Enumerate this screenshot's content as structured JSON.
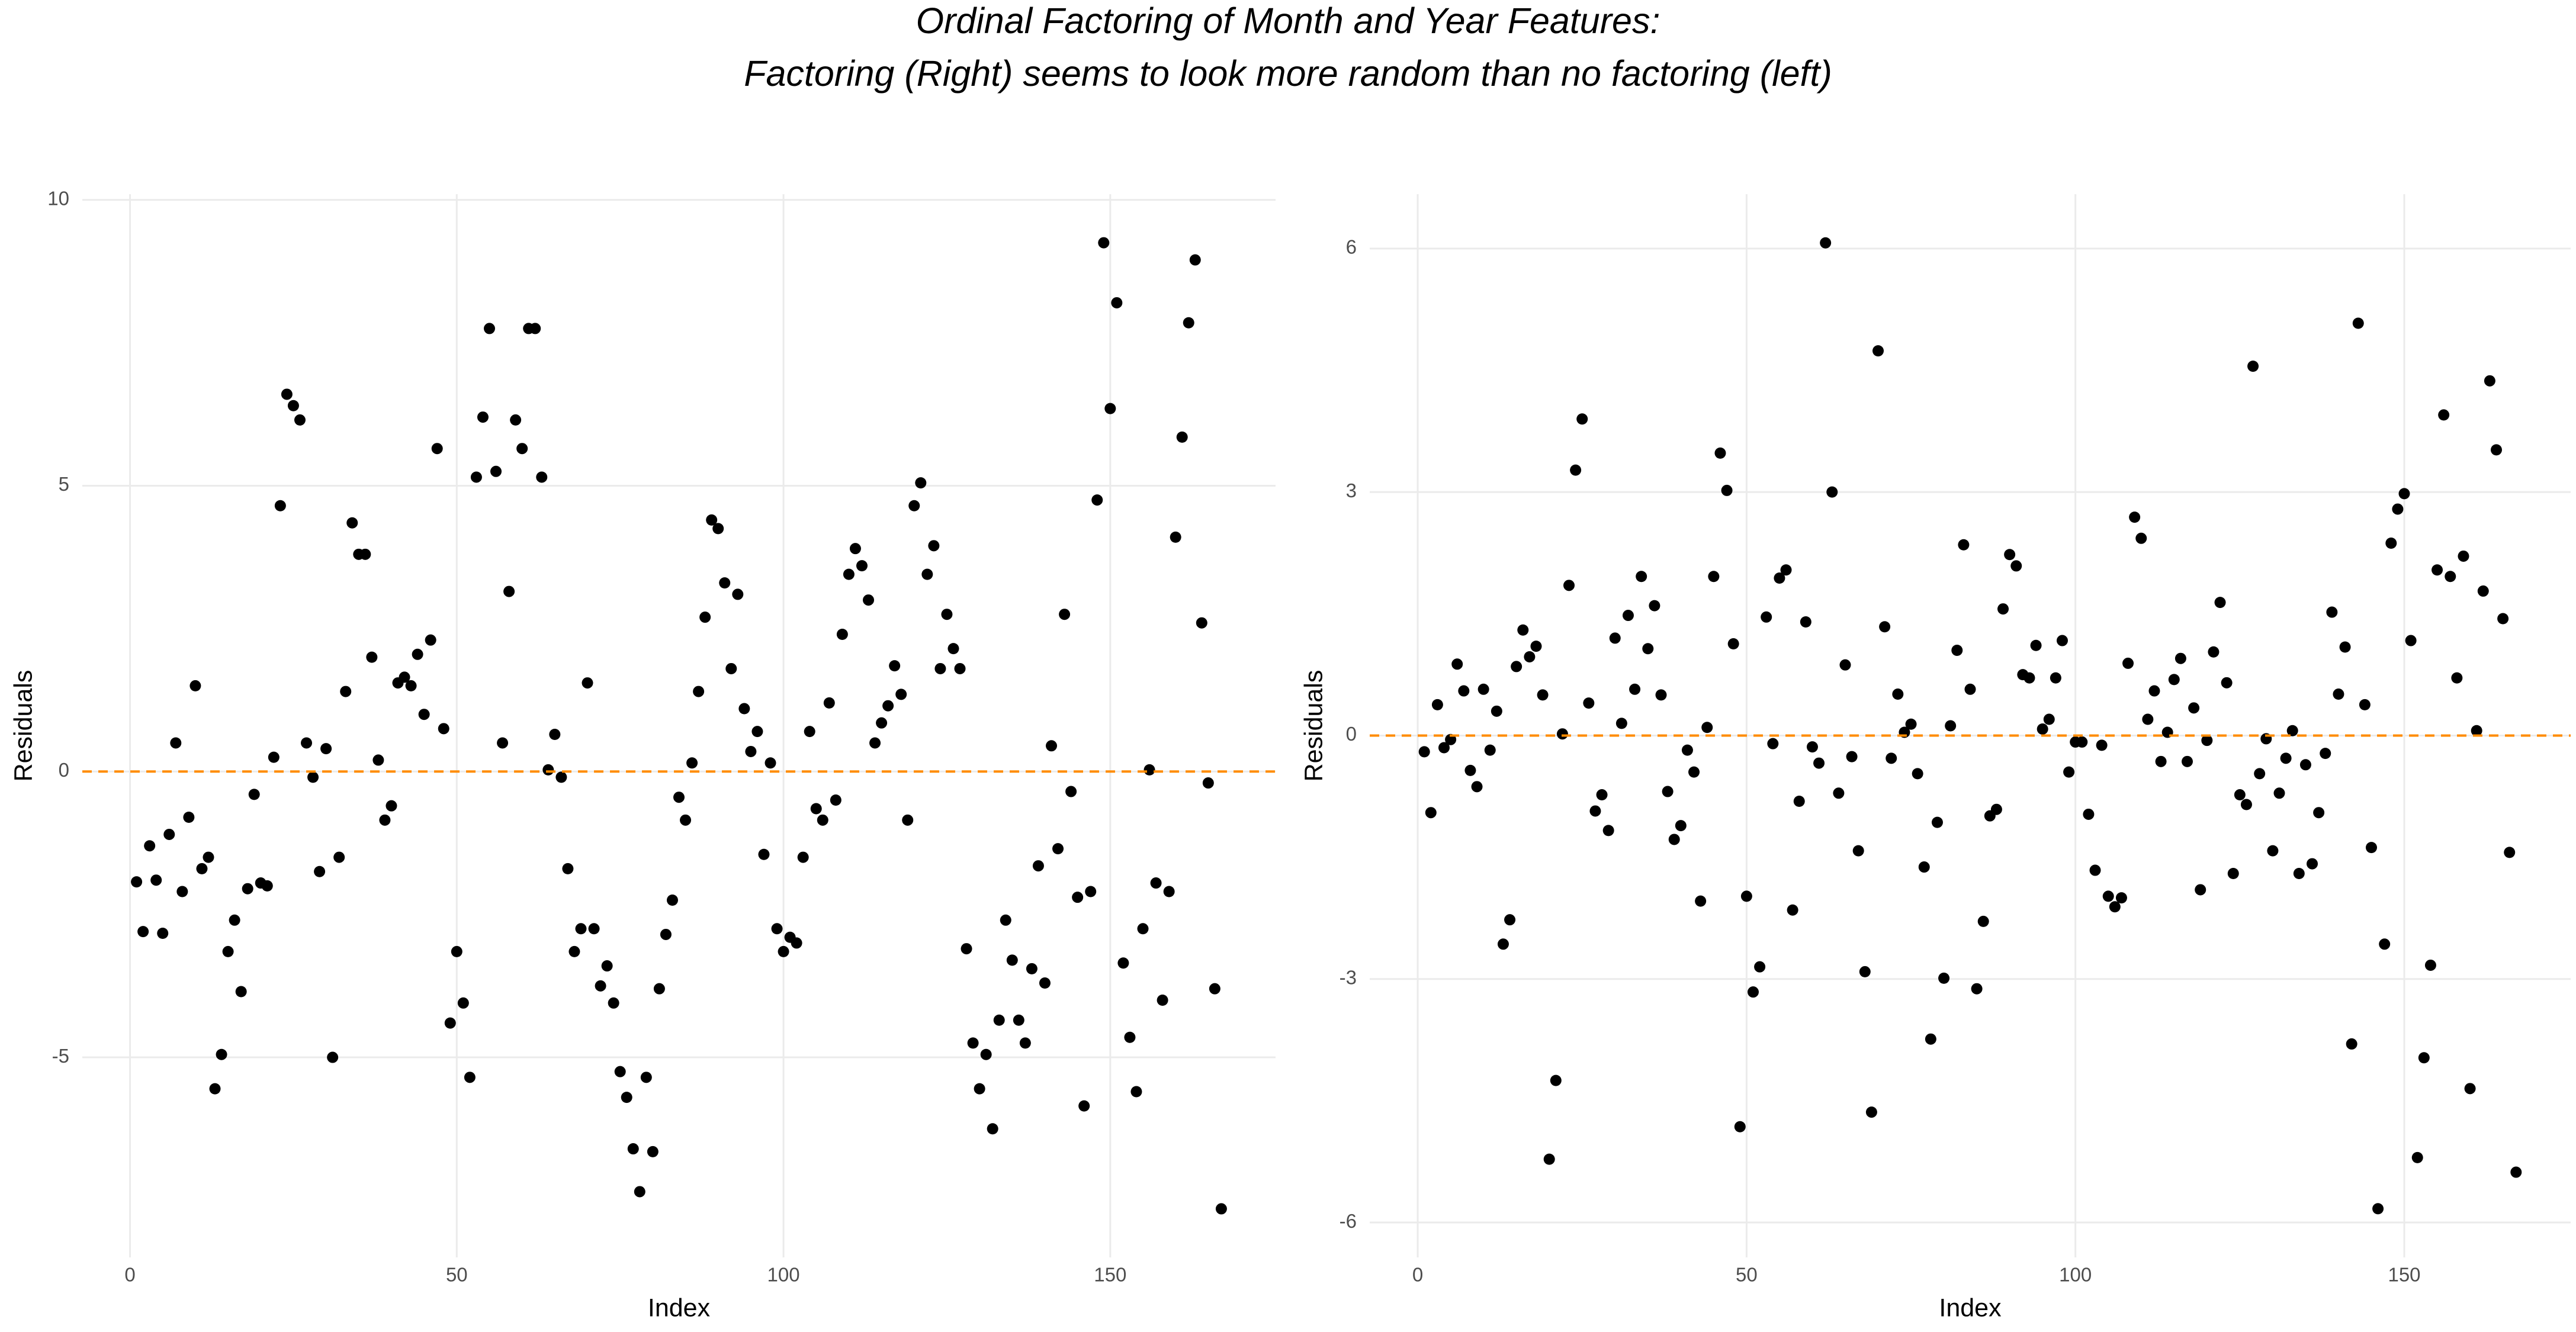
{
  "title": [
    "Ordinal Factoring of Month and Year Features:",
    "Factoring (Right) seems to look more random than no factoring (left)"
  ],
  "chart_data": [
    {
      "type": "scatter",
      "xlabel": "Index",
      "ylabel": "Residuals",
      "color": "#000000",
      "grid": true,
      "reference_line": {
        "y": 0,
        "color": "#ff8c00",
        "style": "dashed"
      },
      "xlim": [
        -7.3,
        175.3
      ],
      "xticks": [
        0,
        50,
        100,
        150
      ],
      "ylim": [
        -8.5,
        10.1
      ],
      "yticks": [
        -5,
        0,
        5,
        10
      ],
      "x": [
        1,
        2,
        3,
        4,
        5,
        6,
        7,
        8,
        9,
        10,
        11,
        12,
        13,
        14,
        15,
        16,
        17,
        18,
        19,
        20,
        21,
        22,
        23,
        24,
        25,
        26,
        27,
        28,
        29,
        30,
        31,
        32,
        33,
        34,
        35,
        36,
        37,
        38,
        39,
        40,
        41,
        42,
        43,
        44,
        45,
        46,
        47,
        48,
        49,
        50,
        51,
        52,
        53,
        54,
        55,
        56,
        57,
        58,
        59,
        60,
        61,
        62,
        63,
        64,
        65,
        66,
        67,
        68,
        69,
        70,
        71,
        72,
        73,
        74,
        75,
        76,
        77,
        78,
        79,
        80,
        81,
        82,
        83,
        84,
        85,
        86,
        87,
        88,
        89,
        90,
        91,
        92,
        93,
        94,
        95,
        96,
        97,
        98,
        99,
        100,
        101,
        102,
        103,
        104,
        105,
        106,
        107,
        108,
        109,
        110,
        111,
        112,
        113,
        114,
        115,
        116,
        117,
        118,
        119,
        120,
        121,
        122,
        123,
        124,
        125,
        126,
        127,
        128,
        129,
        130,
        131,
        132,
        133,
        134,
        135,
        136,
        137,
        138,
        139,
        140,
        141,
        142,
        143,
        144,
        145,
        146,
        147,
        148,
        149,
        150,
        151,
        152,
        153,
        154,
        155,
        156,
        157,
        158,
        159,
        160,
        161,
        162,
        163,
        164,
        165,
        166,
        167
      ],
      "values": [
        -1.93,
        -2.8,
        -1.3,
        -1.9,
        -2.83,
        -1.1,
        0.5,
        -2.1,
        -0.8,
        1.5,
        -1.7,
        -1.5,
        -5.55,
        -4.95,
        -3.15,
        -2.6,
        -3.85,
        -2.05,
        -0.4,
        -1.95,
        -2.0,
        0.25,
        4.65,
        6.6,
        6.4,
        6.15,
        0.5,
        -0.1,
        -1.75,
        0.4,
        -5.0,
        -1.5,
        1.4,
        4.35,
        3.8,
        3.8,
        2.0,
        0.2,
        -0.85,
        -0.6,
        1.55,
        1.65,
        1.5,
        2.05,
        1.0,
        2.3,
        5.65,
        0.75,
        -4.4,
        -3.15,
        -4.05,
        -5.35,
        5.15,
        6.2,
        7.75,
        5.25,
        0.5,
        3.15,
        6.15,
        5.65,
        7.75,
        7.75,
        5.15,
        0.03,
        0.65,
        -0.1,
        -1.7,
        -3.15,
        -2.75,
        1.55,
        -2.75,
        -3.75,
        -3.4,
        -4.05,
        -5.25,
        -5.7,
        -6.6,
        -7.35,
        -5.35,
        -6.65,
        -3.8,
        -2.85,
        -2.25,
        -0.45,
        -0.85,
        0.15,
        1.4,
        2.7,
        4.4,
        4.25,
        3.3,
        1.8,
        3.1,
        1.1,
        0.35,
        0.7,
        -1.45,
        0.15,
        -2.75,
        -3.15,
        -2.9,
        -3.0,
        -1.5,
        0.7,
        -0.65,
        -0.85,
        1.2,
        -0.5,
        2.4,
        3.45,
        3.9,
        3.6,
        3.0,
        0.5,
        0.85,
        1.15,
        1.85,
        1.35,
        -0.85,
        4.65,
        5.05,
        3.45,
        3.95,
        1.8,
        2.75,
        2.15,
        1.8,
        -3.1,
        -4.75,
        -5.55,
        -4.95,
        -6.25,
        -4.35,
        -2.6,
        -3.3,
        -4.35,
        -4.75,
        -3.45,
        -1.65,
        -3.7,
        0.45,
        -1.35,
        2.75,
        -0.35,
        -2.2,
        -5.85,
        -2.1,
        4.75,
        9.25,
        6.35,
        8.2,
        -3.35,
        -4.65,
        -5.6,
        -2.75,
        0.03,
        -1.95,
        -4.0,
        -2.1,
        4.1,
        5.85,
        7.85,
        8.95,
        2.6,
        -0.2,
        -3.8,
        -7.65
      ]
    },
    {
      "type": "scatter",
      "xlabel": "Index",
      "ylabel": "Residuals",
      "color": "#000000",
      "grid": true,
      "reference_line": {
        "y": 0,
        "color": "#ff8c00",
        "style": "dashed"
      },
      "xlim": [
        -7.3,
        175.3
      ],
      "xticks": [
        0,
        50,
        100,
        150
      ],
      "ylim": [
        -6.43,
        6.67
      ],
      "yticks": [
        -6,
        -3,
        0,
        3,
        6
      ],
      "x": [
        1,
        2,
        3,
        4,
        5,
        6,
        7,
        8,
        9,
        10,
        11,
        12,
        13,
        14,
        15,
        16,
        17,
        18,
        19,
        20,
        21,
        22,
        23,
        24,
        25,
        26,
        27,
        28,
        29,
        30,
        31,
        32,
        33,
        34,
        35,
        36,
        37,
        38,
        39,
        40,
        41,
        42,
        43,
        44,
        45,
        46,
        47,
        48,
        49,
        50,
        51,
        52,
        53,
        54,
        55,
        56,
        57,
        58,
        59,
        60,
        61,
        62,
        63,
        64,
        65,
        66,
        67,
        68,
        69,
        70,
        71,
        72,
        73,
        74,
        75,
        76,
        77,
        78,
        79,
        80,
        81,
        82,
        83,
        84,
        85,
        86,
        87,
        88,
        89,
        90,
        91,
        92,
        93,
        94,
        95,
        96,
        97,
        98,
        99,
        100,
        101,
        102,
        103,
        104,
        105,
        106,
        107,
        108,
        109,
        110,
        111,
        112,
        113,
        114,
        115,
        116,
        117,
        118,
        119,
        120,
        121,
        122,
        123,
        124,
        125,
        126,
        127,
        128,
        129,
        130,
        131,
        132,
        133,
        134,
        135,
        136,
        137,
        138,
        139,
        140,
        141,
        142,
        143,
        144,
        145,
        146,
        147,
        148,
        149,
        150,
        151,
        152,
        153,
        154,
        155,
        156,
        157,
        158,
        159,
        160,
        161,
        162,
        163,
        164,
        165,
        166,
        167
      ],
      "values": [
        -0.2,
        -0.95,
        0.38,
        -0.15,
        -0.05,
        0.88,
        0.55,
        -0.43,
        -0.63,
        0.57,
        -0.18,
        0.3,
        -2.57,
        -2.27,
        0.85,
        1.3,
        0.97,
        1.1,
        0.5,
        -5.22,
        -4.25,
        0.02,
        1.85,
        3.27,
        3.9,
        0.4,
        -0.93,
        -0.73,
        -1.17,
        1.2,
        0.15,
        1.48,
        0.57,
        1.96,
        1.07,
        1.6,
        0.5,
        -0.69,
        -1.28,
        -1.11,
        -0.18,
        -0.45,
        -2.04,
        0.1,
        1.96,
        3.48,
        3.02,
        1.13,
        -4.82,
        -1.98,
        -3.16,
        -2.85,
        1.46,
        -0.1,
        1.94,
        2.04,
        -2.15,
        -0.81,
        1.4,
        -0.14,
        -0.34,
        6.07,
        3.0,
        -0.71,
        0.87,
        -0.26,
        -1.42,
        -2.91,
        -4.64,
        4.74,
        1.34,
        -0.28,
        0.51,
        0.04,
        0.14,
        -0.47,
        -1.62,
        -3.74,
        -1.07,
        -2.99,
        0.12,
        1.05,
        2.35,
        0.57,
        -3.12,
        -2.29,
        -0.99,
        -0.91,
        1.56,
        2.23,
        2.09,
        0.75,
        0.71,
        1.11,
        0.08,
        0.2,
        0.71,
        1.17,
        -0.45,
        -0.08,
        -0.08,
        -0.97,
        -1.66,
        -0.12,
        -1.98,
        -2.11,
        -2.0,
        0.89,
        2.69,
        2.43,
        0.2,
        0.55,
        -0.32,
        0.04,
        0.69,
        0.95,
        -0.32,
        0.34,
        -1.9,
        -0.06,
        1.03,
        1.64,
        0.65,
        -1.7,
        -0.73,
        -0.85,
        4.55,
        -0.47,
        -0.04,
        -1.42,
        -0.71,
        -0.28,
        0.06,
        -1.7,
        -0.36,
        -1.58,
        -0.95,
        -0.22,
        1.52,
        0.51,
        1.09,
        -3.8,
        5.08,
        0.38,
        -1.38,
        -5.83,
        -2.57,
        2.37,
        2.79,
        2.98,
        1.17,
        -5.2,
        -3.97,
        -2.83,
        2.04,
        3.95,
        1.96,
        0.71,
        2.21,
        -4.35,
        0.06,
        1.78,
        4.37,
        3.52,
        1.44,
        -1.44,
        -5.38
      ]
    }
  ]
}
